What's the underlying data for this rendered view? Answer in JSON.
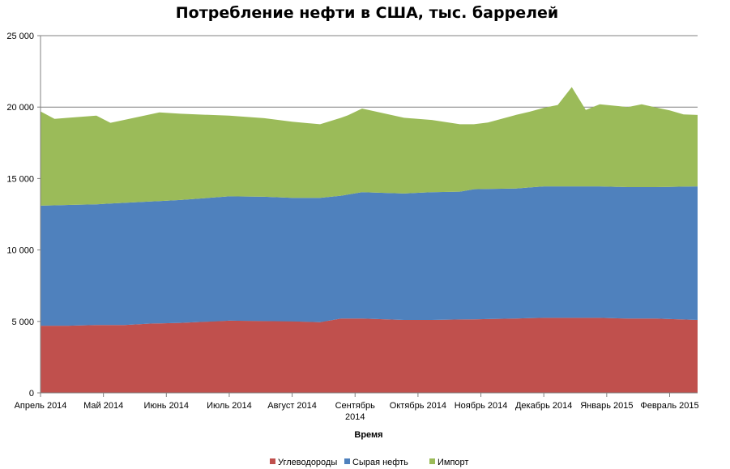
{
  "chart_data": {
    "type": "area",
    "stacked": true,
    "title": "Потребление нефти в США, тыс. баррелей",
    "xlabel": "Время",
    "ylabel": "",
    "ylim": [
      0,
      25000
    ],
    "yticks": [
      0,
      5000,
      10000,
      15000,
      20000,
      25000
    ],
    "ytick_labels": [
      "0",
      "5 000",
      "10 000",
      "15 000",
      "20 000",
      "25 000"
    ],
    "grid": true,
    "legend_position": "bottom",
    "x_index_range": [
      0,
      47
    ],
    "x_labels": [
      {
        "index": 0,
        "lines": [
          "Апрель 2014"
        ]
      },
      {
        "index": 4.5,
        "lines": [
          "Май 2014"
        ]
      },
      {
        "index": 9,
        "lines": [
          "Июнь 2014"
        ]
      },
      {
        "index": 13.5,
        "lines": [
          "Июль 2014"
        ]
      },
      {
        "index": 18,
        "lines": [
          "Август 2014"
        ]
      },
      {
        "index": 22.5,
        "lines": [
          "Сентябрь",
          "2014"
        ]
      },
      {
        "index": 27,
        "lines": [
          "Октябрь 2014"
        ]
      },
      {
        "index": 31.5,
        "lines": [
          "Ноябрь 2014"
        ]
      },
      {
        "index": 36,
        "lines": [
          "Декабрь 2014"
        ]
      },
      {
        "index": 40.5,
        "lines": [
          "Январь 2015"
        ]
      },
      {
        "index": 45,
        "lines": [
          "Февраль 2015"
        ]
      }
    ],
    "series": [
      {
        "name": "Углеводороды",
        "color": "#c0504d",
        "points": [
          [
            0,
            4700
          ],
          [
            2,
            4700
          ],
          [
            4,
            4750
          ],
          [
            6,
            4750
          ],
          [
            8,
            4850
          ],
          [
            10,
            4900
          ],
          [
            13.5,
            5050
          ],
          [
            18,
            5000
          ],
          [
            20,
            4950
          ],
          [
            21.5,
            5200
          ],
          [
            23,
            5200
          ],
          [
            26,
            5100
          ],
          [
            28,
            5100
          ],
          [
            31,
            5150
          ],
          [
            34,
            5200
          ],
          [
            36,
            5250
          ],
          [
            38,
            5250
          ],
          [
            40,
            5250
          ],
          [
            42,
            5200
          ],
          [
            44,
            5200
          ],
          [
            47,
            5100
          ]
        ]
      },
      {
        "name": "Сырая нефть",
        "color": "#4f81bd",
        "points": [
          [
            0,
            8400
          ],
          [
            2,
            8450
          ],
          [
            4,
            8450
          ],
          [
            6,
            8550
          ],
          [
            8,
            8550
          ],
          [
            10,
            8600
          ],
          [
            13.5,
            8700
          ],
          [
            16,
            8700
          ],
          [
            18,
            8650
          ],
          [
            20,
            8700
          ],
          [
            21.5,
            8600
          ],
          [
            23,
            8850
          ],
          [
            26,
            8850
          ],
          [
            28,
            8950
          ],
          [
            30,
            8950
          ],
          [
            31,
            9100
          ],
          [
            34,
            9100
          ],
          [
            36,
            9200
          ],
          [
            38,
            9200
          ],
          [
            40,
            9200
          ],
          [
            42,
            9200
          ],
          [
            44,
            9200
          ],
          [
            47,
            9350
          ]
        ]
      },
      {
        "name": "Импорт",
        "color": "#9bbb59",
        "points": [
          [
            0,
            6600
          ],
          [
            1,
            6050
          ],
          [
            4,
            6200
          ],
          [
            5,
            5650
          ],
          [
            8.5,
            6200
          ],
          [
            13.5,
            5650
          ],
          [
            16,
            5500
          ],
          [
            20,
            5150
          ],
          [
            22,
            5550
          ],
          [
            23,
            5850
          ],
          [
            26,
            5300
          ],
          [
            28,
            5050
          ],
          [
            31,
            4550
          ],
          [
            32,
            4650
          ],
          [
            34,
            5150
          ],
          [
            35,
            5300
          ],
          [
            37,
            5700
          ],
          [
            38,
            6950
          ],
          [
            39,
            5350
          ],
          [
            40,
            5750
          ],
          [
            42,
            5600
          ],
          [
            43,
            5800
          ],
          [
            45,
            5350
          ],
          [
            46,
            5050
          ],
          [
            47,
            5000
          ]
        ]
      }
    ]
  }
}
